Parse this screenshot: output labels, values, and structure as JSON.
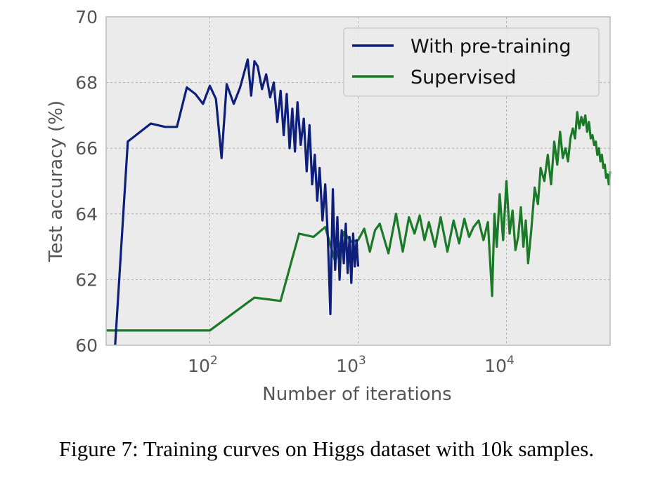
{
  "figure": {
    "caption": "Figure 7: Training curves on Higgs dataset with 10k samples."
  },
  "chart_data": {
    "type": "line",
    "title": "",
    "xlabel": "Number of iterations",
    "ylabel": "Test accuracy (%)",
    "xscale": "log",
    "xlim": [
      20,
      50000
    ],
    "ylim": [
      60,
      70
    ],
    "yticks": [
      "60",
      "62",
      "64",
      "66",
      "68",
      "70"
    ],
    "xticks": [
      {
        "value": 100,
        "base": "10",
        "exp": "2"
      },
      {
        "value": 1000,
        "base": "10",
        "exp": "3"
      },
      {
        "value": 10000,
        "base": "10",
        "exp": "4"
      }
    ],
    "grid": true,
    "legend_position": "top-right",
    "series": [
      {
        "name": "With pre-training",
        "color": "#0d1f7a",
        "x": [
          23,
          28,
          40,
          50,
          60,
          70,
          80,
          90,
          100,
          110,
          120,
          130,
          145,
          160,
          180,
          190,
          200,
          210,
          225,
          240,
          255,
          270,
          285,
          300,
          315,
          330,
          345,
          360,
          375,
          390,
          410,
          430,
          450,
          470,
          490,
          510,
          530,
          550,
          575,
          600,
          625,
          650,
          675,
          700,
          725,
          750,
          775,
          800,
          825,
          850,
          875,
          900,
          925,
          950,
          975,
          1000
        ],
        "y": [
          60.0,
          66.2,
          66.75,
          66.65,
          66.65,
          67.85,
          67.65,
          67.35,
          67.9,
          67.5,
          65.7,
          67.95,
          67.35,
          67.85,
          68.7,
          67.6,
          68.65,
          68.5,
          67.8,
          68.25,
          67.55,
          68.0,
          66.8,
          67.75,
          66.4,
          67.65,
          66.0,
          67.2,
          65.9,
          67.4,
          66.1,
          66.9,
          65.3,
          66.7,
          64.9,
          65.8,
          64.4,
          65.4,
          63.8,
          64.9,
          63.3,
          60.95,
          64.75,
          62.3,
          63.9,
          62.0,
          63.5,
          62.5,
          63.7,
          62.2,
          63.3,
          61.9,
          63.4,
          62.4,
          63.2,
          62.4
        ]
      },
      {
        "name": "Supervised",
        "color": "#1a7a27",
        "x": [
          20,
          100,
          200,
          300,
          400,
          500,
          600,
          700,
          800,
          900,
          1000,
          1100,
          1200,
          1300,
          1400,
          1600,
          1800,
          2000,
          2200,
          2400,
          2600,
          2800,
          3000,
          3300,
          3600,
          4000,
          4400,
          4800,
          5200,
          5600,
          6000,
          6500,
          7000,
          7500,
          8000,
          8300,
          8600,
          9000,
          9500,
          10000,
          10500,
          11000,
          11500,
          12000,
          12500,
          13000,
          13500,
          14000,
          14700,
          15500,
          16300,
          17000,
          18000,
          19000,
          20000,
          21000,
          22000,
          23000,
          24000,
          25000,
          26000,
          27000,
          28000,
          29000,
          30000,
          31000,
          32000,
          33000,
          34000,
          35000,
          36000,
          37000,
          38000,
          39000,
          40000,
          41000,
          42000,
          43000,
          44000,
          45000,
          46000,
          47000,
          48000,
          49000,
          50000
        ],
        "y": [
          60.45,
          60.45,
          61.45,
          61.35,
          63.4,
          63.3,
          63.6,
          62.55,
          63.45,
          63.15,
          63.2,
          63.55,
          62.85,
          63.5,
          63.7,
          62.8,
          64.0,
          62.85,
          63.9,
          63.4,
          63.95,
          63.2,
          63.75,
          63.0,
          63.9,
          62.85,
          63.8,
          63.1,
          63.85,
          63.3,
          63.6,
          63.8,
          63.2,
          63.75,
          61.5,
          64.0,
          63.0,
          64.6,
          63.2,
          65.0,
          63.4,
          64.1,
          62.9,
          63.3,
          64.2,
          63.0,
          63.8,
          62.5,
          63.5,
          64.8,
          64.3,
          65.4,
          65.0,
          65.8,
          64.9,
          66.2,
          65.5,
          66.5,
          65.7,
          66.0,
          65.6,
          66.3,
          66.6,
          66.3,
          67.1,
          66.6,
          66.95,
          66.7,
          67.0,
          66.5,
          66.8,
          66.3,
          66.4,
          66.1,
          66.2,
          65.8,
          66.0,
          65.6,
          65.8,
          65.4,
          65.5,
          65.1,
          65.2,
          64.9,
          65.3
        ]
      }
    ]
  }
}
